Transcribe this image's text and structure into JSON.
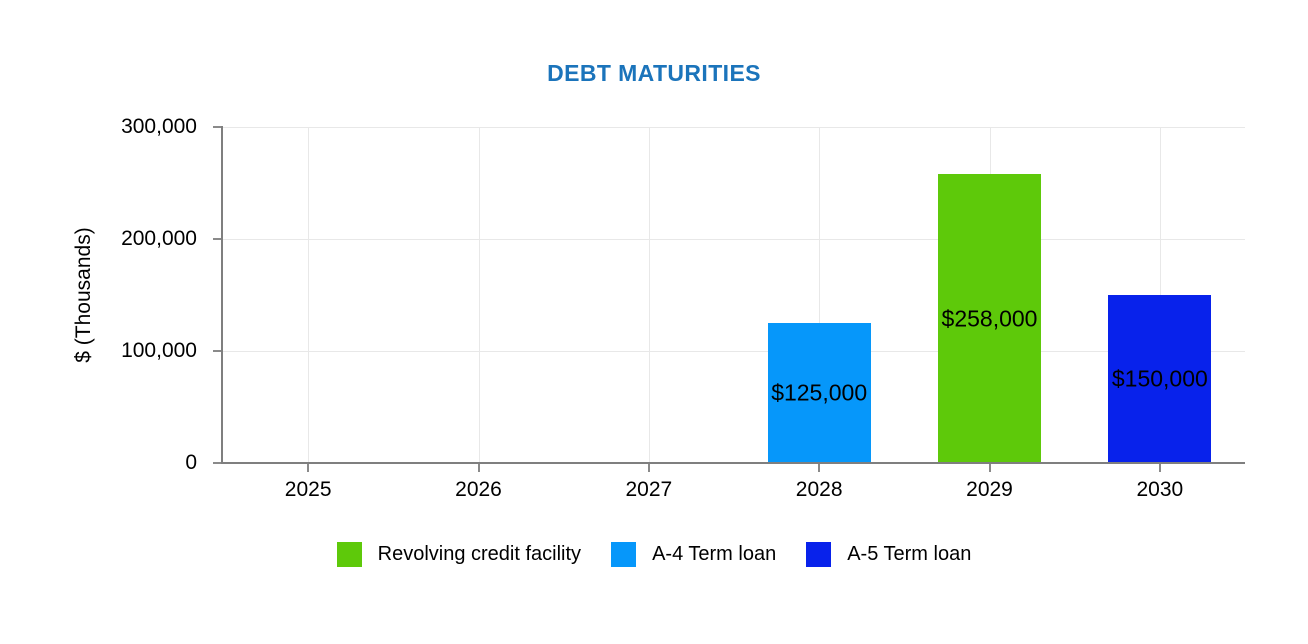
{
  "chart_data": {
    "type": "bar",
    "title": "DEBT MATURITIES",
    "title_color": "#1B74BB",
    "ylabel": "$ (Thousands)",
    "categories": [
      "2025",
      "2026",
      "2027",
      "2028",
      "2029",
      "2030"
    ],
    "ylim": [
      0,
      300000
    ],
    "ytick_interval": 100000,
    "yticks": [
      {
        "value": 0,
        "label": "0"
      },
      {
        "value": 100000,
        "label": "100,000"
      },
      {
        "value": 200000,
        "label": "200,000"
      },
      {
        "value": 300000,
        "label": "300,000"
      }
    ],
    "grid": true,
    "legend_position": "bottom",
    "series": [
      {
        "name": "Revolving credit facility",
        "color": "#5EC90A",
        "values": [
          0,
          0,
          0,
          0,
          258000,
          0
        ]
      },
      {
        "name": "A-4 Term loan",
        "color": "#0697FA",
        "values": [
          0,
          0,
          0,
          125000,
          0,
          0
        ]
      },
      {
        "name": "A-5 Term loan",
        "color": "#0822EB",
        "values": [
          0,
          0,
          0,
          0,
          0,
          150000
        ]
      }
    ],
    "bars": [
      {
        "category_index": 3,
        "category": "2028",
        "series": "A-4 Term loan",
        "value": 125000,
        "label": "$125,000",
        "color": "#0697FA"
      },
      {
        "category_index": 4,
        "category": "2029",
        "series": "Revolving credit facility",
        "value": 258000,
        "label": "$258,000",
        "color": "#5EC90A"
      },
      {
        "category_index": 5,
        "category": "2030",
        "series": "A-5 Term loan",
        "value": 150000,
        "label": "$150,000",
        "color": "#0822EB"
      }
    ],
    "axis_color": "#7F7F7F",
    "gridline_color": "#E8E8E8",
    "label_color": "#000000"
  }
}
